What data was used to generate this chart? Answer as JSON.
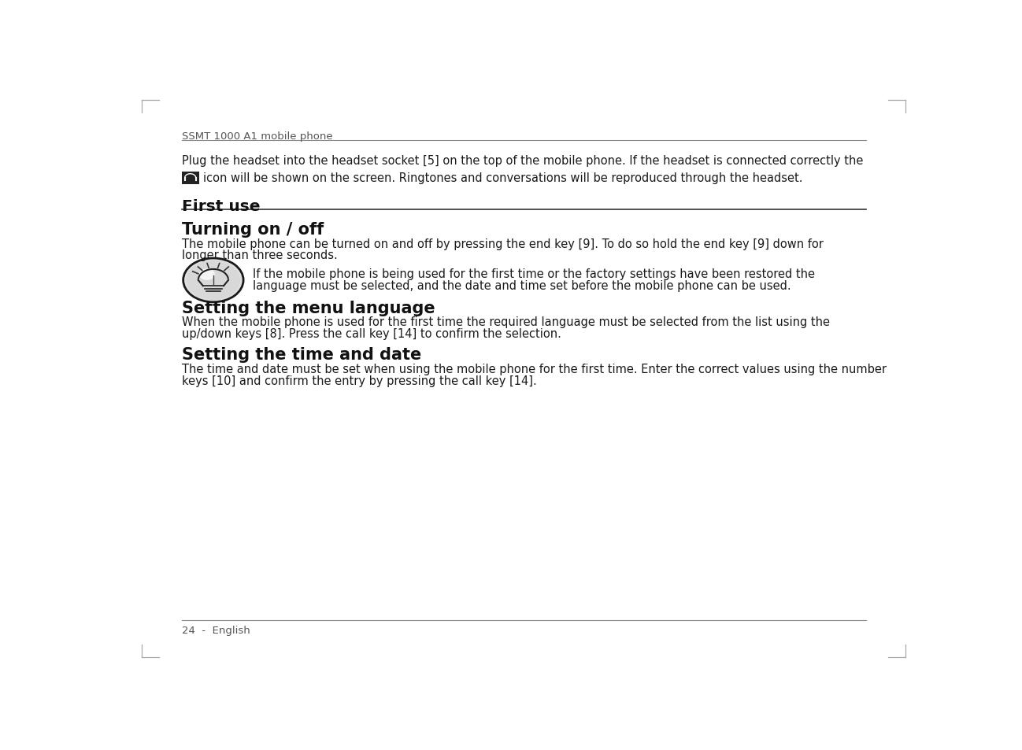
{
  "bg_color": "#ffffff",
  "header_text": "SSMT 1000 A1 mobile phone",
  "footer_text": "24  -  English",
  "intro_line1": "Plug the headset into the headset socket [5] on the top of the mobile phone. If the headset is connected correctly the",
  "intro_line2": "icon will be shown on the screen. Ringtones and conversations will be reproduced through the headset.",
  "section_first_use": "First use",
  "section1_title": "Turning on / off",
  "s1_body1": "The mobile phone can be turned on and off by pressing the end key [9]. To do so hold the end key [9] down for",
  "s1_body2": "longer than three seconds.",
  "note_line1": "If the mobile phone is being used for the first time or the factory settings have been restored the",
  "note_line2": "language must be selected, and the date and time set before the mobile phone can be used.",
  "section2_title": "Setting the menu language",
  "s2_body1": "When the mobile phone is used for the first time the required language must be selected from the list using the",
  "s2_body2": "up/down keys [8]. Press the call key [14] to confirm the selection.",
  "section3_title": "Setting the time and date",
  "s3_body1": "The time and date must be set when using the mobile phone for the first time. Enter the correct values using the number",
  "s3_body2": "keys [10] and confirm the entry by pressing the call key [14].",
  "text_color": "#1a1a1a",
  "gray_color": "#555555",
  "line_color": "#888888",
  "title_bold_color": "#111111",
  "ml": 0.068,
  "mr": 0.932
}
